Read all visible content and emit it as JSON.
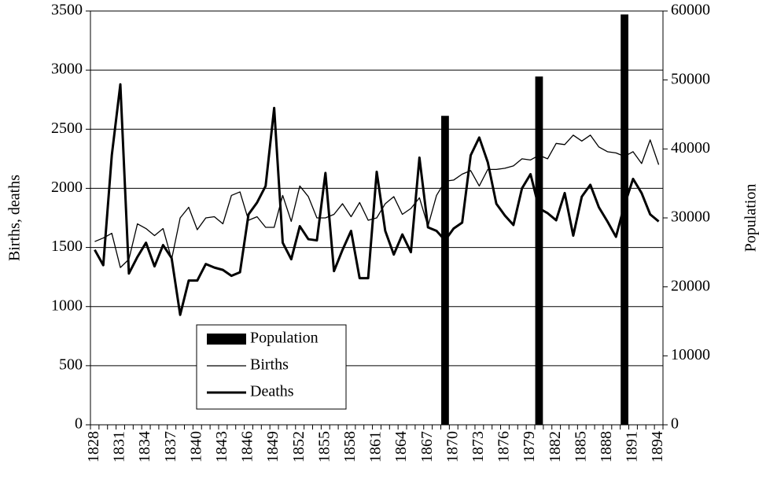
{
  "chart_data": {
    "type": "line",
    "y_label": "Births, deaths",
    "y2_label": "Population",
    "categories": [
      "1828",
      null,
      null,
      "1831",
      null,
      null,
      "1834",
      null,
      null,
      "1837",
      null,
      null,
      "1840",
      null,
      null,
      "1843",
      null,
      null,
      "1846",
      null,
      null,
      "1849",
      null,
      null,
      "1852",
      null,
      null,
      "1855",
      null,
      null,
      "1858",
      null,
      null,
      "1861",
      null,
      null,
      "1864",
      null,
      null,
      "1867",
      null,
      null,
      "1870",
      null,
      null,
      "1873",
      null,
      null,
      "1876",
      null,
      null,
      "1879",
      null,
      null,
      "1882",
      null,
      null,
      "1885",
      null,
      null,
      "1888",
      null,
      null,
      "1891",
      null,
      null,
      "1894"
    ],
    "series": [
      {
        "name": "Population",
        "type": "bar",
        "axis": "y2",
        "color": "#000000",
        "values": [
          null,
          null,
          null,
          null,
          null,
          null,
          null,
          null,
          null,
          null,
          null,
          null,
          null,
          null,
          null,
          null,
          null,
          null,
          null,
          null,
          null,
          null,
          null,
          null,
          null,
          null,
          null,
          null,
          null,
          null,
          null,
          null,
          null,
          null,
          null,
          null,
          null,
          null,
          null,
          null,
          null,
          44800,
          null,
          null,
          null,
          null,
          null,
          null,
          null,
          null,
          null,
          null,
          50500,
          null,
          null,
          null,
          null,
          null,
          null,
          null,
          null,
          null,
          59500,
          null,
          null,
          null,
          null
        ]
      },
      {
        "name": "Births",
        "type": "line",
        "color": "#000000",
        "width": 1.3,
        "values": [
          1550,
          1580,
          1620,
          1330,
          1400,
          1700,
          1660,
          1600,
          1660,
          1400,
          1750,
          1840,
          1650,
          1750,
          1760,
          1700,
          1940,
          1970,
          1730,
          1760,
          1670,
          1670,
          1940,
          1720,
          2020,
          1930,
          1750,
          1750,
          1780,
          1870,
          1760,
          1880,
          1730,
          1750,
          1870,
          1930,
          1780,
          1830,
          1920,
          1680,
          1940,
          2060,
          2070,
          2120,
          2150,
          2020,
          2160,
          2160,
          2170,
          2190,
          2250,
          2240,
          2280,
          2250,
          2380,
          2370,
          2450,
          2400,
          2450,
          2350,
          2310,
          2300,
          2270,
          2310,
          2210,
          2410,
          2200
        ]
      },
      {
        "name": "Deaths",
        "type": "line",
        "color": "#000000",
        "width": 3,
        "values": [
          1480,
          1350,
          2280,
          2880,
          1280,
          1420,
          1540,
          1340,
          1520,
          1410,
          930,
          1220,
          1220,
          1360,
          1330,
          1310,
          1260,
          1290,
          1780,
          1880,
          2020,
          2680,
          1540,
          1400,
          1680,
          1570,
          1560,
          2130,
          1300,
          1480,
          1640,
          1240,
          1240,
          2140,
          1640,
          1440,
          1610,
          1460,
          2260,
          1670,
          1640,
          1560,
          1660,
          1710,
          2280,
          2430,
          2220,
          1870,
          1770,
          1690,
          2000,
          2120,
          1830,
          1790,
          1730,
          1960,
          1600,
          1930,
          2030,
          1840,
          1720,
          1590,
          1860,
          2080,
          1960,
          1780,
          1720
        ]
      }
    ],
    "ylim": [
      0,
      3500
    ],
    "yticks": [
      0,
      500,
      1000,
      1500,
      2000,
      2500,
      3000,
      3500
    ],
    "y2lim": [
      0,
      60000
    ],
    "y2ticks": [
      0,
      10000,
      20000,
      30000,
      40000,
      50000,
      60000
    ],
    "grid": true
  }
}
